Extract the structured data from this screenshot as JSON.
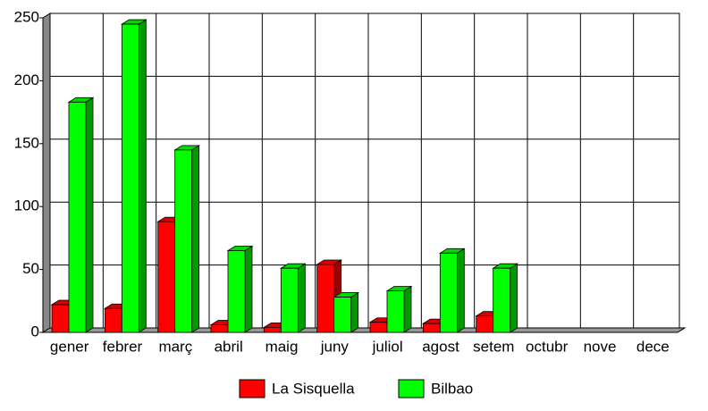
{
  "chart_data": {
    "type": "bar3d",
    "categories": [
      "gener",
      "febrer",
      "març",
      "abril",
      "maig",
      "juny",
      "juliol",
      "agost",
      "setem",
      "octubr",
      "nove",
      "dece"
    ],
    "series": [
      {
        "name": "La Sisquella",
        "color": "#ff0000",
        "values": [
          22,
          19,
          88,
          6,
          4,
          54,
          8,
          7,
          13,
          null,
          null,
          null
        ]
      },
      {
        "name": "Bilbao",
        "color": "#00ff00",
        "values": [
          183,
          245,
          145,
          65,
          51,
          28,
          33,
          63,
          51,
          null,
          null,
          null
        ]
      }
    ],
    "ylim": [
      0,
      250
    ],
    "yticks": [
      0,
      50,
      100,
      150,
      200,
      250
    ],
    "grid": true
  }
}
